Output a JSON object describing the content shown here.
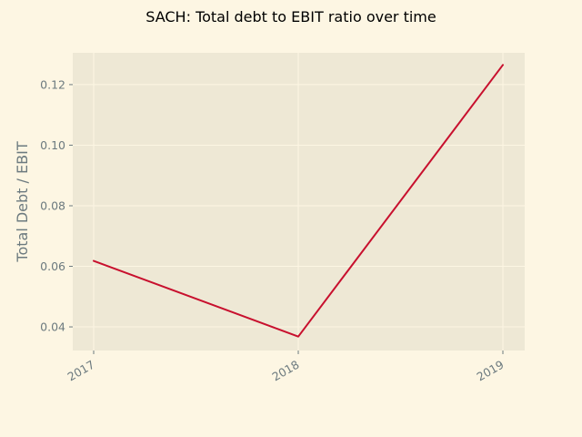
{
  "chart_data": {
    "type": "line",
    "title": "SACH: Total debt to EBIT ratio over time",
    "xlabel": "",
    "ylabel": "Total Debt / EBIT",
    "x": [
      "2017",
      "2018",
      "2019"
    ],
    "series": [
      {
        "values": [
          0.0618,
          0.0368,
          0.1265
        ]
      }
    ],
    "ylim": [
      0.0322,
      0.1305
    ],
    "yticks": [
      0.04,
      0.06,
      0.08,
      0.1,
      0.12
    ],
    "ytick_labels": [
      "0.04",
      "0.06",
      "0.08",
      "0.10",
      "0.12"
    ],
    "xtick_labels": [
      "2017",
      "2018",
      "2019"
    ],
    "grid": true,
    "colors": {
      "figure_bg": "#fdf6e3",
      "axes_bg": "#eee8d5",
      "grid": "#fdf6e3",
      "line": "#c8102e",
      "tick": "#6c7a7f",
      "title": "#000000"
    }
  }
}
